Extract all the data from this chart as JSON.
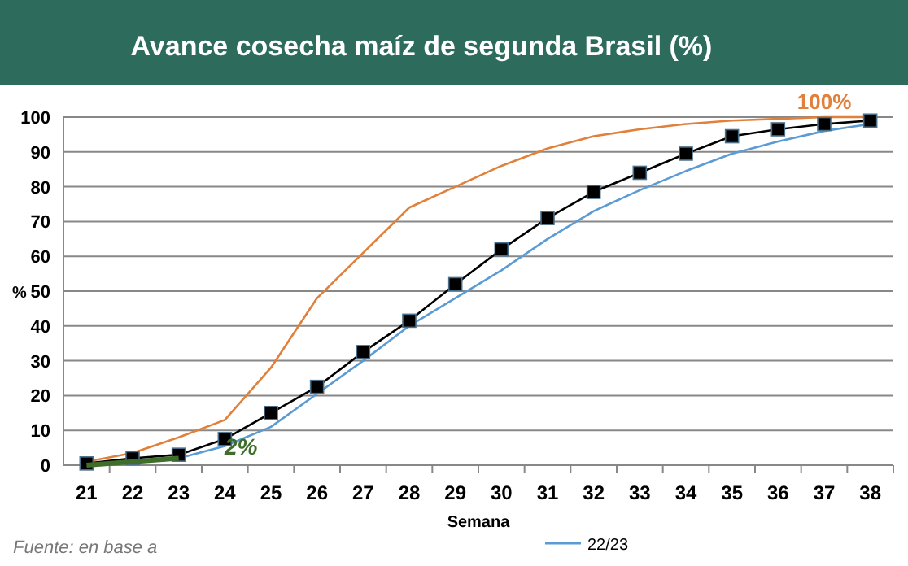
{
  "chart_data": {
    "type": "line",
    "title": "Avance cosecha maíz de segunda Brasil (%)",
    "xlabel": "Semana",
    "ylabel": "%",
    "categories": [
      "21",
      "22",
      "23",
      "24",
      "25",
      "26",
      "27",
      "28",
      "29",
      "30",
      "31",
      "32",
      "33",
      "34",
      "35",
      "36",
      "37",
      "38"
    ],
    "series": [
      {
        "color": "#e0803a",
        "values": [
          1,
          3.5,
          8,
          13,
          28,
          48,
          61,
          74,
          80,
          86,
          91,
          94.5,
          96.5,
          98,
          99,
          99.5,
          100,
          100
        ]
      },
      {
        "name": "22/23",
        "color": "#5b9bd5",
        "values": [
          0,
          1,
          2,
          5.5,
          11,
          20.5,
          30,
          40,
          48,
          56,
          65,
          73,
          79,
          84.5,
          89.5,
          93,
          96,
          98
        ]
      },
      {
        "color": "#000000",
        "marker": "square",
        "values": [
          0.5,
          2,
          3,
          7.5,
          15,
          22.5,
          32.5,
          41.5,
          52,
          62,
          71,
          78.5,
          84,
          89.5,
          94.5,
          96.5,
          98,
          99
        ]
      },
      {
        "color": "#3f6e2a",
        "values": [
          0,
          1,
          2,
          null,
          null,
          null,
          null,
          null,
          null,
          null,
          null,
          null,
          null,
          null,
          null,
          null,
          null,
          null
        ]
      }
    ],
    "ylim": [
      0,
      100
    ],
    "yticks": [
      0,
      10,
      20,
      30,
      40,
      50,
      60,
      70,
      80,
      90,
      100
    ],
    "grid": "y",
    "legend": "bottom",
    "annotations": [
      {
        "text": "100%",
        "x": "37",
        "y": 100
      },
      {
        "text": "2%",
        "x": "23",
        "y": 2
      },
      "Fuente: en base a"
    ]
  }
}
